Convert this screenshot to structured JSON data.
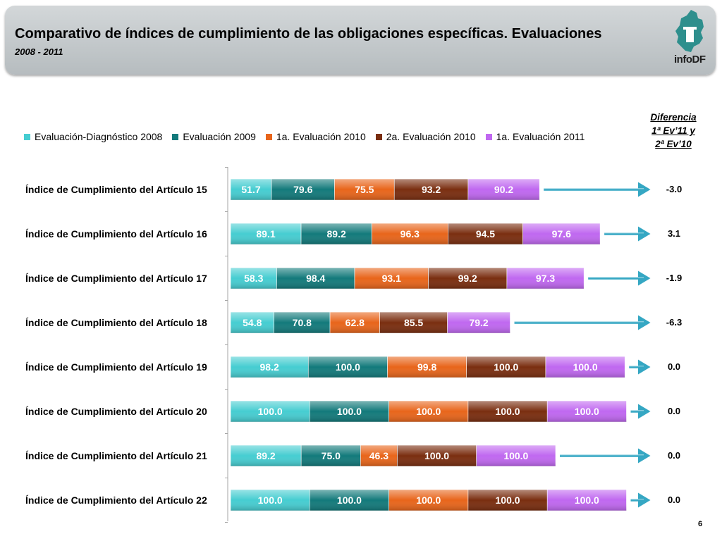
{
  "slide": {
    "title": "Comparativo de índices de cumplimiento de las obligaciones específicas. Evaluaciones",
    "subtitle": "2008 - 2011",
    "logo_text": "infoDF",
    "page_number": "6"
  },
  "diff_header": {
    "line1": "Diferencia",
    "line2": "1ª Ev’11 y",
    "line3": "2ª Ev’10"
  },
  "colors": {
    "series": [
      "#46cdd1",
      "#137a7b",
      "#e8651b",
      "#7a2e10",
      "#c068f0"
    ],
    "arrow": "#35a7c3"
  },
  "chart_data": {
    "type": "bar",
    "stacked": true,
    "orientation": "horizontal",
    "categories": [
      "Índice de Cumplimiento del Artículo 15",
      "Índice de Cumplimiento del Artículo 16",
      "Índice de Cumplimiento del Artículo 17",
      "Índice de Cumplimiento del Artículo 18",
      "Índice de Cumplimiento del Artículo 19",
      "Índice de Cumplimiento del Artículo 20",
      "Índice de Cumplimiento del Artículo 21",
      "Índice de Cumplimiento del Artículo 22"
    ],
    "series": [
      {
        "name": "Evaluación-Diagnóstico 2008",
        "values": [
          51.7,
          89.1,
          58.3,
          54.8,
          98.2,
          100.0,
          89.2,
          100.0
        ]
      },
      {
        "name": "Evaluación 2009",
        "values": [
          79.6,
          89.2,
          98.4,
          70.8,
          100.0,
          100.0,
          75.0,
          100.0
        ]
      },
      {
        "name": "1a. Evaluación 2010",
        "values": [
          75.5,
          96.3,
          93.1,
          62.8,
          99.8,
          100.0,
          46.3,
          100.0
        ]
      },
      {
        "name": "2a. Evaluación 2010",
        "values": [
          93.2,
          94.5,
          99.2,
          85.5,
          100.0,
          100.0,
          100.0,
          100.0
        ]
      },
      {
        "name": "1a. Evaluación 2011",
        "values": [
          90.2,
          97.6,
          97.3,
          79.2,
          100.0,
          100.0,
          100.0,
          100.0
        ]
      }
    ],
    "differences": [
      "-3.0",
      "3.1",
      "-1.9",
      "-6.3",
      "0.0",
      "0.0",
      "0.0",
      "0.0"
    ],
    "xlim": [
      0,
      500
    ],
    "legend_position": "top",
    "value_format": "0.0"
  }
}
